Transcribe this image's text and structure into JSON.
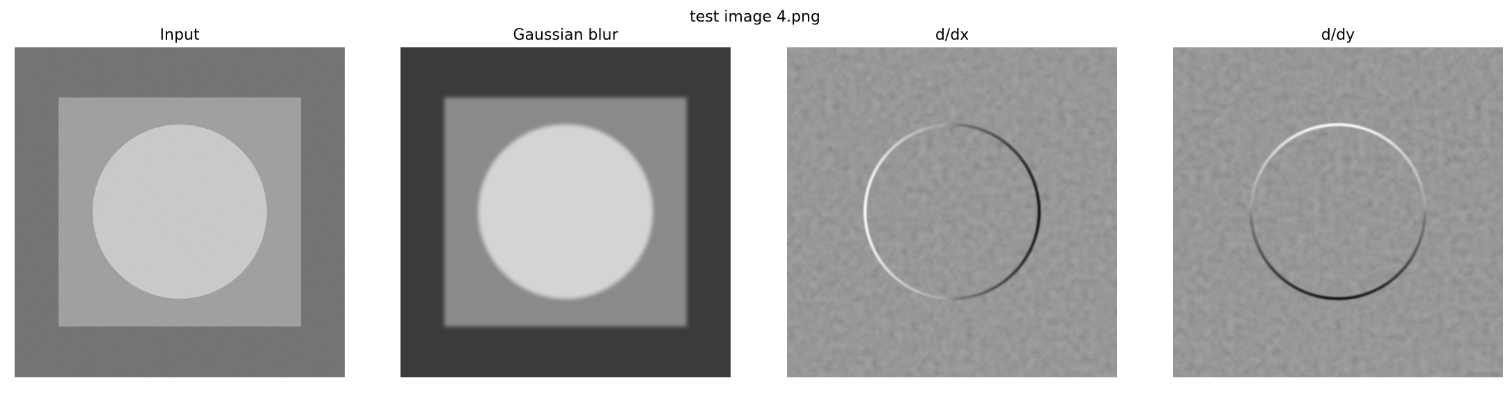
{
  "figure": {
    "title": "test image 4.png"
  },
  "panels": [
    {
      "title": "Input"
    },
    {
      "title": "Gaussian blur"
    },
    {
      "title": "d/dx"
    },
    {
      "title": "d/dy"
    }
  ],
  "colors": {
    "background_dark": "#3b3b3b",
    "square_gray": "#8a8a8a",
    "circle_light": "#d6d6d6",
    "derivative_gray": "#888888",
    "edge_white": "#ffffff",
    "edge_black": "#111111"
  }
}
